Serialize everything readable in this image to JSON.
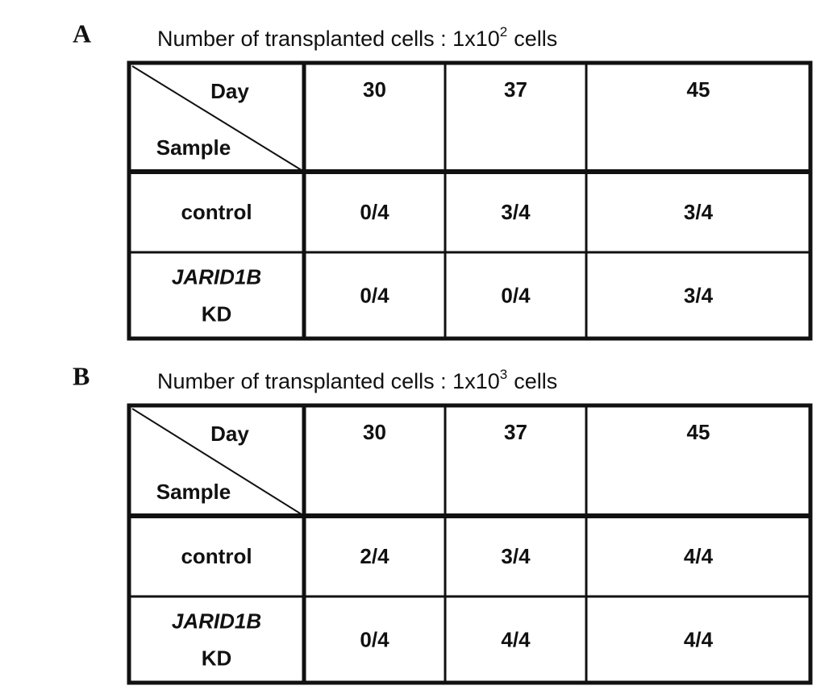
{
  "panels": [
    {
      "label": "A",
      "title": {
        "text": "Number of transplanted cells : 1x10",
        "exponent": "2",
        "unit": "cells"
      },
      "table": {
        "corner": {
          "top": "Day",
          "bottom": "Sample"
        },
        "columns": [
          30,
          37,
          45
        ],
        "rows": [
          {
            "sample": [
              "control"
            ],
            "values": [
              "0/4",
              "3/4",
              "3/4"
            ]
          },
          {
            "sample": [
              "JARID1B",
              "KD"
            ],
            "values": [
              "0/4",
              "0/4",
              "3/4"
            ]
          }
        ]
      }
    },
    {
      "label": "B",
      "title": {
        "text": "Number of transplanted cells : 1x10",
        "exponent": "3",
        "unit": "cells"
      },
      "table": {
        "corner": {
          "top": "Day",
          "bottom": "Sample"
        },
        "columns": [
          30,
          37,
          45
        ],
        "rows": [
          {
            "sample": [
              "control"
            ],
            "values": [
              "2/4",
              "3/4",
              "4/4"
            ]
          },
          {
            "sample": [
              "JARID1B",
              "KD"
            ],
            "values": [
              "0/4",
              "4/4",
              "4/4"
            ]
          }
        ]
      }
    }
  ]
}
